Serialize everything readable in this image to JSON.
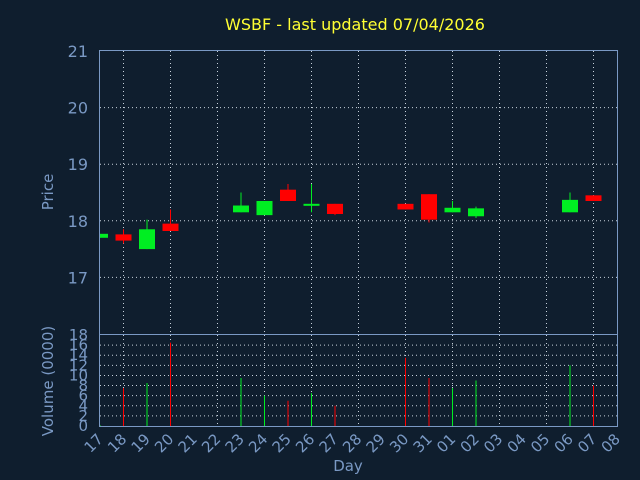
{
  "chart_data": {
    "type": "candlestick",
    "title": "WSBF - last updated 07/04/2026",
    "xlabel": "Day",
    "grid": true,
    "colors": {
      "up": "#00ee22",
      "down": "#ff0000",
      "background": "#0f1e2e",
      "text": "#7a99c4",
      "title": "#ffff33"
    },
    "categories": [
      "17",
      "18",
      "19",
      "20",
      "21",
      "22",
      "23",
      "24",
      "25",
      "26",
      "27",
      "28",
      "29",
      "30",
      "31",
      "01",
      "02",
      "03",
      "04",
      "05",
      "06",
      "07",
      "08"
    ],
    "price_panel": {
      "ylabel": "Price",
      "ylim": [
        16.0,
        21.0
      ],
      "ticks": [
        17,
        18,
        19,
        20,
        21
      ],
      "candles": [
        {
          "day": "17",
          "open": 17.7,
          "close": 17.77,
          "high": 17.77,
          "low": 17.7
        },
        {
          "day": "18",
          "open": 17.76,
          "close": 17.65,
          "high": 17.85,
          "low": 17.6
        },
        {
          "day": "19",
          "open": 17.5,
          "close": 17.85,
          "high": 18.02,
          "low": 17.5
        },
        {
          "day": "20",
          "open": 17.95,
          "close": 17.82,
          "high": 18.2,
          "low": 17.82
        },
        {
          "day": "23",
          "open": 18.15,
          "close": 18.27,
          "high": 18.5,
          "low": 18.15
        },
        {
          "day": "24",
          "open": 18.1,
          "close": 18.35,
          "high": 18.35,
          "low": 18.1
        },
        {
          "day": "25",
          "open": 18.55,
          "close": 18.35,
          "high": 18.65,
          "low": 18.35
        },
        {
          "day": "26",
          "open": 18.27,
          "close": 18.3,
          "high": 18.65,
          "low": 18.15
        },
        {
          "day": "27",
          "open": 18.3,
          "close": 18.12,
          "high": 18.3,
          "low": 18.1
        },
        {
          "day": "30",
          "open": 18.3,
          "close": 18.2,
          "high": 18.3,
          "low": 18.2
        },
        {
          "day": "31",
          "open": 18.47,
          "close": 18.02,
          "high": 18.47,
          "low": 17.97
        },
        {
          "day": "01",
          "open": 18.15,
          "close": 18.23,
          "high": 18.35,
          "low": 18.15
        },
        {
          "day": "02",
          "open": 18.08,
          "close": 18.22,
          "high": 18.25,
          "low": 18.05
        },
        {
          "day": "06",
          "open": 18.15,
          "close": 18.37,
          "high": 18.5,
          "low": 18.15
        },
        {
          "day": "07",
          "open": 18.45,
          "close": 18.35,
          "high": 18.45,
          "low": 18.35
        }
      ]
    },
    "volume_panel": {
      "ylabel": "Volume (0000)",
      "ylim": [
        0,
        18
      ],
      "ticks": [
        0,
        2,
        4,
        6,
        8,
        10,
        12,
        14,
        16,
        18
      ],
      "bars": [
        {
          "day": "17",
          "value": 0.2,
          "direction": "up"
        },
        {
          "day": "18",
          "value": 7.5,
          "direction": "down"
        },
        {
          "day": "19",
          "value": 8.5,
          "direction": "up"
        },
        {
          "day": "20",
          "value": 16.5,
          "direction": "down"
        },
        {
          "day": "23",
          "value": 9.5,
          "direction": "up"
        },
        {
          "day": "24",
          "value": 6.0,
          "direction": "up"
        },
        {
          "day": "25",
          "value": 5.0,
          "direction": "down"
        },
        {
          "day": "26",
          "value": 6.5,
          "direction": "up"
        },
        {
          "day": "27",
          "value": 4.0,
          "direction": "down"
        },
        {
          "day": "30",
          "value": 13.5,
          "direction": "down"
        },
        {
          "day": "31",
          "value": 9.5,
          "direction": "down"
        },
        {
          "day": "01",
          "value": 7.5,
          "direction": "up"
        },
        {
          "day": "02",
          "value": 9.0,
          "direction": "up"
        },
        {
          "day": "06",
          "value": 12.0,
          "direction": "up"
        },
        {
          "day": "07",
          "value": 8.0,
          "direction": "down"
        }
      ]
    }
  }
}
